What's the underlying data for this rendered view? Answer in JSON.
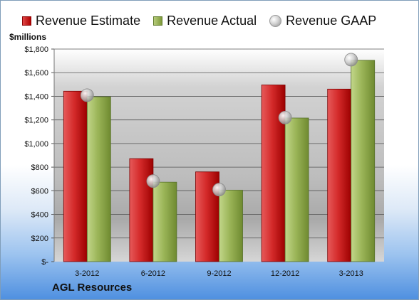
{
  "legend": {
    "estimate": "Revenue Estimate",
    "actual": "Revenue Actual",
    "gaap": "Revenue GAAP"
  },
  "unit_label": "$millions",
  "company": "AGL Resources",
  "colors": {
    "estimate": "#c81e1e",
    "actual": "#93ab4c",
    "gaap": "#c8c8c8"
  },
  "chart_data": {
    "type": "bar",
    "categories": [
      "3-2012",
      "6-2012",
      "9-2012",
      "12-2012",
      "3-2013"
    ],
    "series": [
      {
        "name": "Revenue Estimate",
        "values": [
          1443,
          872,
          760,
          1496,
          1461
        ]
      },
      {
        "name": "Revenue Actual",
        "values": [
          1396,
          673,
          605,
          1216,
          1705
        ]
      },
      {
        "name": "Revenue GAAP",
        "values": [
          1409,
          682,
          610,
          1220,
          1710
        ]
      }
    ],
    "ylabel": "$millions",
    "ylim": [
      0,
      1800
    ],
    "yticks": [
      "$-",
      "$200",
      "$400",
      "$600",
      "$800",
      "$1,000",
      "$1,200",
      "$1,400",
      "$1,600",
      "$1,800"
    ],
    "grid": true,
    "legend_position": "top"
  }
}
